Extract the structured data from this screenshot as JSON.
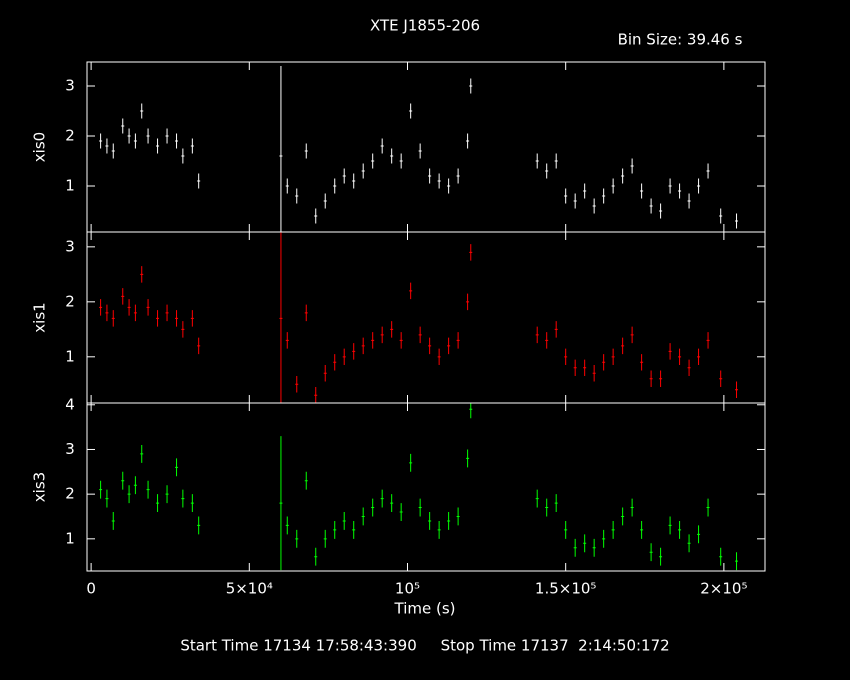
{
  "header": {
    "title": "XTE J1855-206",
    "bin_size": "Bin Size: 39.46 s"
  },
  "footer": "Start Time 17134 17:58:43:390     Stop Time 17137  2:14:50:172",
  "chart_data": [
    {
      "type": "scatter",
      "ylabel": "xis0",
      "color": "#ffffff",
      "ylim": [
        0.08,
        3.48
      ],
      "yticks": [
        1,
        2,
        3
      ],
      "x": [
        3000,
        5000,
        7000,
        10000,
        12000,
        14000,
        16000,
        18000,
        21000,
        24000,
        27000,
        29000,
        32000,
        34000,
        60000,
        62000,
        65000,
        68000,
        71000,
        74000,
        77000,
        80000,
        83000,
        86000,
        89000,
        92000,
        95000,
        98000,
        101000,
        104000,
        107000,
        110000,
        113000,
        116000,
        119000,
        120000,
        141000,
        144000,
        147000,
        150000,
        153000,
        156000,
        159000,
        162000,
        165000,
        168000,
        171000,
        174000,
        177000,
        180000,
        183000,
        186000,
        189000,
        192000,
        195000,
        199000,
        204000
      ],
      "values": [
        1.9,
        1.8,
        1.7,
        2.2,
        2.0,
        1.9,
        2.5,
        2.0,
        1.8,
        2.0,
        1.9,
        1.6,
        1.8,
        1.1,
        1.6,
        1.0,
        0.8,
        1.7,
        0.4,
        0.7,
        1.0,
        1.2,
        1.1,
        1.3,
        1.5,
        1.8,
        1.6,
        1.5,
        2.5,
        1.7,
        1.2,
        1.1,
        1.0,
        1.2,
        1.9,
        3.0,
        1.5,
        1.3,
        1.5,
        0.8,
        0.7,
        0.9,
        0.6,
        0.8,
        1.0,
        1.2,
        1.4,
        0.9,
        0.6,
        0.5,
        1.0,
        0.9,
        0.7,
        1.0,
        1.3,
        0.4,
        0.3
      ],
      "errors": [
        0.15,
        0.15,
        0.15,
        0.15,
        0.15,
        0.15,
        0.15,
        0.15,
        0.15,
        0.15,
        0.15,
        0.15,
        0.15,
        0.15,
        1.8,
        0.15,
        0.15,
        0.15,
        0.15,
        0.15,
        0.15,
        0.15,
        0.15,
        0.15,
        0.15,
        0.15,
        0.15,
        0.15,
        0.15,
        0.15,
        0.15,
        0.15,
        0.15,
        0.15,
        0.15,
        0.15,
        0.15,
        0.15,
        0.15,
        0.15,
        0.15,
        0.15,
        0.15,
        0.15,
        0.15,
        0.15,
        0.15,
        0.15,
        0.15,
        0.15,
        0.15,
        0.15,
        0.15,
        0.15,
        0.15,
        0.15,
        0.15
      ]
    },
    {
      "type": "scatter",
      "ylabel": "xis1",
      "color": "#ff0000",
      "ylim": [
        0.16,
        3.27
      ],
      "yticks": [
        1,
        2,
        3
      ],
      "x": [
        3000,
        5000,
        7000,
        10000,
        12000,
        14000,
        16000,
        18000,
        21000,
        24000,
        27000,
        29000,
        32000,
        34000,
        60000,
        62000,
        65000,
        68000,
        71000,
        74000,
        77000,
        80000,
        83000,
        86000,
        89000,
        92000,
        95000,
        98000,
        101000,
        104000,
        107000,
        110000,
        113000,
        116000,
        119000,
        120000,
        141000,
        144000,
        147000,
        150000,
        153000,
        156000,
        159000,
        162000,
        165000,
        168000,
        171000,
        174000,
        177000,
        180000,
        183000,
        186000,
        189000,
        192000,
        195000,
        199000,
        204000
      ],
      "values": [
        1.9,
        1.8,
        1.7,
        2.1,
        1.9,
        1.8,
        2.5,
        1.9,
        1.7,
        1.8,
        1.7,
        1.5,
        1.7,
        1.2,
        1.7,
        1.3,
        0.5,
        1.8,
        0.3,
        0.7,
        0.9,
        1.0,
        1.1,
        1.2,
        1.3,
        1.4,
        1.5,
        1.3,
        2.2,
        1.4,
        1.2,
        1.0,
        1.2,
        1.3,
        2.0,
        2.9,
        1.4,
        1.3,
        1.5,
        1.0,
        0.8,
        0.8,
        0.7,
        0.9,
        1.0,
        1.2,
        1.4,
        0.9,
        0.6,
        0.6,
        1.1,
        1.0,
        0.8,
        1.0,
        1.3,
        0.6,
        0.4
      ],
      "errors": [
        0.15,
        0.15,
        0.15,
        0.15,
        0.15,
        0.15,
        0.15,
        0.15,
        0.15,
        0.15,
        0.15,
        0.15,
        0.15,
        0.15,
        1.6,
        0.15,
        0.15,
        0.15,
        0.15,
        0.15,
        0.15,
        0.15,
        0.15,
        0.15,
        0.15,
        0.15,
        0.15,
        0.15,
        0.15,
        0.15,
        0.15,
        0.15,
        0.15,
        0.15,
        0.15,
        0.15,
        0.15,
        0.15,
        0.15,
        0.15,
        0.15,
        0.15,
        0.15,
        0.15,
        0.15,
        0.15,
        0.15,
        0.15,
        0.15,
        0.15,
        0.15,
        0.15,
        0.15,
        0.15,
        0.15,
        0.15,
        0.15
      ]
    },
    {
      "type": "scatter",
      "ylabel": "xis3",
      "xlabel": "Time (s)",
      "color": "#00ff00",
      "ylim": [
        0.28,
        4.04
      ],
      "yticks": [
        1,
        2,
        3,
        4
      ],
      "xlim": [
        -1300,
        213000
      ],
      "xticks": [
        0,
        {
          "value": 50000,
          "label": "5×10⁴"
        },
        {
          "value": 100000,
          "label": "10⁵"
        },
        {
          "value": 150000,
          "label": "1.5×10⁵"
        },
        {
          "value": 200000,
          "label": "2×10⁵"
        }
      ],
      "x": [
        3000,
        5000,
        7000,
        10000,
        12000,
        14000,
        16000,
        18000,
        21000,
        24000,
        27000,
        29000,
        32000,
        34000,
        60000,
        62000,
        65000,
        68000,
        71000,
        74000,
        77000,
        80000,
        83000,
        86000,
        89000,
        92000,
        95000,
        98000,
        101000,
        104000,
        107000,
        110000,
        113000,
        116000,
        119000,
        120000,
        141000,
        144000,
        147000,
        150000,
        153000,
        156000,
        159000,
        162000,
        165000,
        168000,
        171000,
        174000,
        177000,
        180000,
        183000,
        186000,
        189000,
        192000,
        195000,
        199000,
        204000
      ],
      "values": [
        2.1,
        1.9,
        1.4,
        2.3,
        2.0,
        2.2,
        2.9,
        2.1,
        1.8,
        2.0,
        2.6,
        1.9,
        1.8,
        1.3,
        1.8,
        1.3,
        1.0,
        2.3,
        0.6,
        1.0,
        1.2,
        1.4,
        1.2,
        1.5,
        1.7,
        1.9,
        1.8,
        1.6,
        2.7,
        1.7,
        1.4,
        1.2,
        1.4,
        1.5,
        2.8,
        3.9,
        1.9,
        1.7,
        1.8,
        1.2,
        0.8,
        0.9,
        0.8,
        1.0,
        1.2,
        1.5,
        1.7,
        1.2,
        0.7,
        0.6,
        1.3,
        1.2,
        0.9,
        1.1,
        1.7,
        0.6,
        0.5
      ],
      "errors": [
        0.2,
        0.2,
        0.2,
        0.2,
        0.2,
        0.2,
        0.2,
        0.2,
        0.2,
        0.2,
        0.2,
        0.2,
        0.2,
        0.2,
        1.5,
        0.2,
        0.2,
        0.2,
        0.2,
        0.2,
        0.2,
        0.2,
        0.2,
        0.2,
        0.2,
        0.2,
        0.2,
        0.2,
        0.2,
        0.2,
        0.2,
        0.2,
        0.2,
        0.2,
        0.2,
        0.2,
        0.2,
        0.2,
        0.2,
        0.2,
        0.2,
        0.2,
        0.2,
        0.2,
        0.2,
        0.2,
        0.2,
        0.2,
        0.2,
        0.2,
        0.2,
        0.2,
        0.2,
        0.2,
        0.2,
        0.2,
        0.2
      ]
    }
  ]
}
